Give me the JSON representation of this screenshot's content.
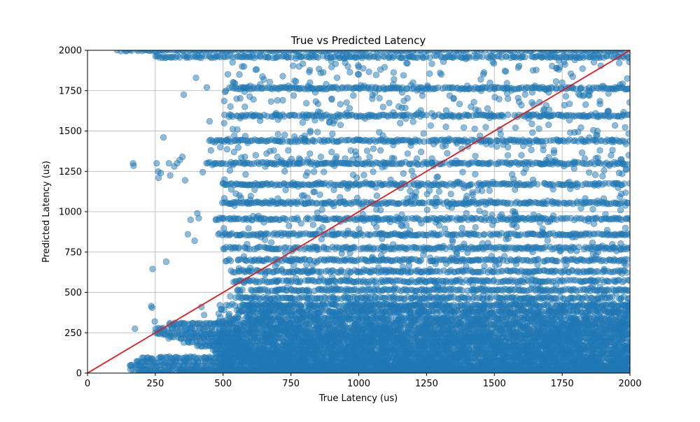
{
  "chart_data": {
    "type": "scatter",
    "title": "True vs Predicted Latency",
    "xlabel": "True Latency (us)",
    "ylabel": "Predicted Latency (us)",
    "xlim": [
      0,
      2000
    ],
    "ylim": [
      0,
      2000
    ],
    "xticks": [
      0,
      250,
      500,
      750,
      1000,
      1250,
      1500,
      1750,
      2000
    ],
    "yticks": [
      0,
      250,
      500,
      750,
      1000,
      1250,
      1500,
      1750,
      2000
    ],
    "grid": true,
    "colors": {
      "points": "#1f77b4",
      "reference_line": "#e31a1c",
      "grid": "#b0b0b0"
    },
    "series": [
      {
        "kind": "scatter",
        "color": "#1f77b4",
        "opacity": 0.5,
        "marker": "circle",
        "points": [
          [
            160,
            50
          ],
          [
            175,
            275
          ],
          [
            168,
            1300
          ],
          [
            170,
            1285
          ],
          [
            240,
            645
          ],
          [
            235,
            415
          ],
          [
            238,
            405
          ],
          [
            248,
            320
          ],
          [
            255,
            1300
          ],
          [
            260,
            1250
          ],
          [
            262,
            1210
          ],
          [
            270,
            1240
          ],
          [
            280,
            1460
          ],
          [
            290,
            690
          ],
          [
            300,
            1300
          ],
          [
            305,
            1225
          ],
          [
            320,
            1280
          ],
          [
            330,
            1300
          ],
          [
            340,
            1320
          ],
          [
            350,
            1340
          ],
          [
            355,
            1725
          ],
          [
            360,
            1195
          ],
          [
            370,
            860
          ],
          [
            380,
            950
          ],
          [
            395,
            820
          ],
          [
            400,
            1830
          ],
          [
            405,
            990
          ],
          [
            410,
            960
          ],
          [
            420,
            410
          ],
          [
            425,
            1245
          ],
          [
            430,
            360
          ],
          [
            435,
            285
          ],
          [
            440,
            1770
          ],
          [
            450,
            1560
          ],
          [
            455,
            1380
          ],
          [
            460,
            1290
          ],
          [
            470,
            1430
          ],
          [
            480,
            1300
          ],
          [
            490,
            1400
          ],
          [
            500,
            1175
          ],
          [
            505,
            1600
          ],
          [
            510,
            1750
          ],
          [
            520,
            1450
          ],
          [
            530,
            1050
          ],
          [
            540,
            1800
          ],
          [
            550,
            1700
          ],
          [
            560,
            1850
          ],
          [
            570,
            1900
          ],
          [
            580,
            1650
          ],
          [
            600,
            1780
          ],
          [
            620,
            1880
          ],
          [
            650,
            1820
          ],
          [
            680,
            1760
          ],
          [
            700,
            1690
          ],
          [
            720,
            1840
          ],
          [
            740,
            1780
          ],
          [
            760,
            1720
          ],
          [
            780,
            1900
          ],
          [
            800,
            1760
          ],
          [
            820,
            1800
          ],
          [
            840,
            1740
          ],
          [
            860,
            1860
          ],
          [
            880,
            1790
          ],
          [
            900,
            1700
          ],
          [
            920,
            1830
          ],
          [
            940,
            1770
          ],
          [
            960,
            1900
          ],
          [
            980,
            1720
          ],
          [
            1000,
            1850
          ],
          [
            1020,
            1780
          ],
          [
            1050,
            1700
          ],
          [
            1080,
            1880
          ],
          [
            1100,
            1760
          ],
          [
            1130,
            1820
          ],
          [
            1160,
            1740
          ],
          [
            1200,
            1800
          ],
          [
            1250,
            1760
          ],
          [
            1300,
            1860
          ],
          [
            1350,
            1700
          ],
          [
            1400,
            1780
          ],
          [
            1450,
            1820
          ],
          [
            1500,
            1760
          ],
          [
            1550,
            1700
          ],
          [
            1600,
            1660
          ],
          [
            1650,
            1780
          ],
          [
            1700,
            1740
          ],
          [
            1750,
            1800
          ],
          [
            1800,
            1760
          ],
          [
            1850,
            1720
          ],
          [
            1900,
            1780
          ],
          [
            1950,
            1760
          ],
          [
            1990,
            1825
          ],
          [
            1985,
            1420
          ],
          [
            1960,
            1240
          ],
          [
            1930,
            1350
          ],
          [
            1880,
            1500
          ],
          [
            1820,
            1450
          ],
          [
            1780,
            1490
          ],
          [
            1720,
            1380
          ],
          [
            1680,
            1410
          ],
          [
            1600,
            1350
          ],
          [
            1550,
            1400
          ],
          [
            1470,
            1420
          ],
          [
            1430,
            1345
          ],
          [
            1380,
            1390
          ],
          [
            1320,
            1410
          ],
          [
            1270,
            1330
          ],
          [
            1230,
            1370
          ],
          [
            1180,
            1360
          ],
          [
            1130,
            1330
          ],
          [
            1080,
            1380
          ],
          [
            1040,
            1340
          ],
          [
            990,
            1350
          ],
          [
            950,
            1330
          ],
          [
            900,
            1370
          ],
          [
            860,
            1340
          ],
          [
            820,
            1360
          ],
          [
            780,
            1330
          ],
          [
            740,
            1380
          ],
          [
            700,
            1340
          ],
          [
            660,
            1360
          ],
          [
            620,
            1350
          ],
          [
            580,
            1340
          ],
          [
            540,
            1370
          ]
        ],
        "bands": [
          {
            "y": 2000,
            "x_from": 110,
            "x_to": 2000,
            "density": "high"
          },
          {
            "y": 1960,
            "x_from": 250,
            "x_to": 2000,
            "density": "high"
          },
          {
            "y": 1765,
            "x_from": 520,
            "x_to": 2000,
            "density": "high"
          },
          {
            "y": 1595,
            "x_from": 520,
            "x_to": 2000,
            "density": "high"
          },
          {
            "y": 1440,
            "x_from": 450,
            "x_to": 2000,
            "density": "high"
          },
          {
            "y": 1300,
            "x_from": 440,
            "x_to": 2000,
            "density": "high"
          },
          {
            "y": 1170,
            "x_from": 500,
            "x_to": 2000,
            "density": "high"
          },
          {
            "y": 1055,
            "x_from": 500,
            "x_to": 2000,
            "density": "high"
          },
          {
            "y": 955,
            "x_from": 470,
            "x_to": 2000,
            "density": "high"
          },
          {
            "y": 860,
            "x_from": 480,
            "x_to": 2000,
            "density": "high"
          },
          {
            "y": 775,
            "x_from": 500,
            "x_to": 2000,
            "density": "high"
          },
          {
            "y": 700,
            "x_from": 510,
            "x_to": 2000,
            "density": "high"
          },
          {
            "y": 630,
            "x_from": 530,
            "x_to": 2000,
            "density": "high"
          },
          {
            "y": 570,
            "x_from": 540,
            "x_to": 2000,
            "density": "high"
          },
          {
            "y": 515,
            "x_from": 550,
            "x_to": 2000,
            "density": "high"
          },
          {
            "y": 465,
            "x_from": 560,
            "x_to": 2000,
            "density": "high"
          },
          {
            "y": 420,
            "x_from": 570,
            "x_to": 2000,
            "density": "high"
          },
          {
            "y": 380,
            "x_from": 570,
            "x_to": 2000,
            "density": "high"
          },
          {
            "y": 340,
            "x_from": 580,
            "x_to": 2000,
            "density": "high"
          },
          {
            "y": 305,
            "x_from": 300,
            "x_to": 2000,
            "density": "high"
          },
          {
            "y": 275,
            "x_from": 250,
            "x_to": 2000,
            "density": "high"
          },
          {
            "y": 245,
            "x_from": 250,
            "x_to": 2000,
            "density": "high"
          },
          {
            "y": 220,
            "x_from": 300,
            "x_to": 2000,
            "density": "high"
          },
          {
            "y": 195,
            "x_from": 350,
            "x_to": 2000,
            "density": "high"
          },
          {
            "y": 170,
            "x_from": 400,
            "x_to": 2000,
            "density": "high"
          },
          {
            "y": 145,
            "x_from": 450,
            "x_to": 2000,
            "density": "high"
          },
          {
            "y": 120,
            "x_from": 470,
            "x_to": 2000,
            "density": "high"
          },
          {
            "y": 95,
            "x_from": 200,
            "x_to": 2000,
            "density": "high"
          },
          {
            "y": 70,
            "x_from": 180,
            "x_to": 2000,
            "density": "high"
          },
          {
            "y": 45,
            "x_from": 155,
            "x_to": 2000,
            "density": "high"
          },
          {
            "y": 20,
            "x_from": 160,
            "x_to": 2000,
            "density": "high"
          },
          {
            "y": 5,
            "x_from": 170,
            "x_to": 2000,
            "density": "high"
          }
        ]
      },
      {
        "kind": "line",
        "color": "#e31a1c",
        "x": [
          0,
          2000
        ],
        "y": [
          0,
          2000
        ]
      }
    ]
  }
}
